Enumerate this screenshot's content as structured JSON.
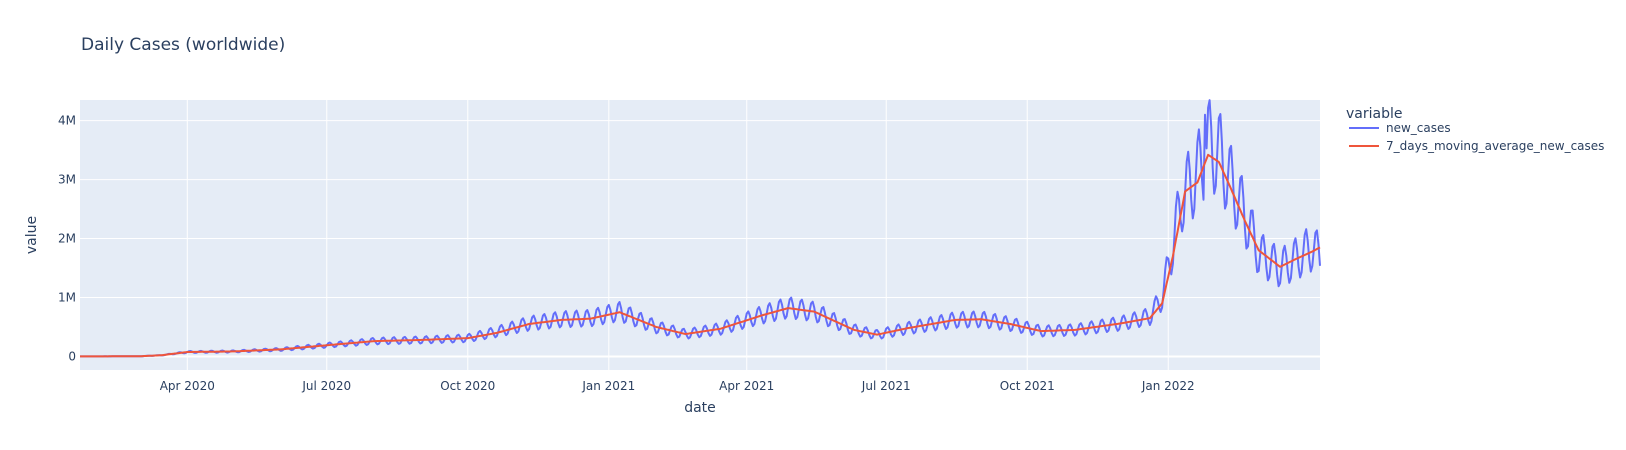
{
  "chart_data": {
    "type": "line",
    "title": "Daily Cases (worldwide)",
    "xlabel": "date",
    "ylabel": "value",
    "x_ticks": [
      {
        "date": "2020-04-01",
        "label": "Apr 2020"
      },
      {
        "date": "2020-07-01",
        "label": "Jul 2020"
      },
      {
        "date": "2020-10-01",
        "label": "Oct 2020"
      },
      {
        "date": "2021-01-01",
        "label": "Jan 2021"
      },
      {
        "date": "2021-04-01",
        "label": "Apr 2021"
      },
      {
        "date": "2021-07-01",
        "label": "Jul 2021"
      },
      {
        "date": "2021-10-01",
        "label": "Oct 2021"
      },
      {
        "date": "2022-01-01",
        "label": "Jan 2022"
      }
    ],
    "y_ticks": [
      {
        "value": 0,
        "label": "0"
      },
      {
        "value": 1000000,
        "label": "1M"
      },
      {
        "value": 2000000,
        "label": "2M"
      },
      {
        "value": 3000000,
        "label": "3M"
      },
      {
        "value": 4000000,
        "label": "4M"
      }
    ],
    "xlim": [
      "2020-01-22",
      "2022-04-10"
    ],
    "ylim": [
      -230000,
      4350000
    ],
    "grid": true,
    "legend": {
      "title": "variable",
      "placement": "right"
    },
    "series": [
      {
        "name": "new_cases",
        "color": "#636efa",
        "base": [
          [
            "2020-01-22",
            0
          ],
          [
            "2020-02-15",
            2000
          ],
          [
            "2020-03-01",
            3000
          ],
          [
            "2020-03-15",
            20000
          ],
          [
            "2020-04-01",
            75000
          ],
          [
            "2020-05-01",
            85000
          ],
          [
            "2020-06-01",
            120000
          ],
          [
            "2020-07-01",
            190000
          ],
          [
            "2020-08-01",
            260000
          ],
          [
            "2020-09-01",
            280000
          ],
          [
            "2020-10-01",
            310000
          ],
          [
            "2020-10-20",
            420000
          ],
          [
            "2020-11-10",
            560000
          ],
          [
            "2020-12-01",
            630000
          ],
          [
            "2020-12-20",
            650000
          ],
          [
            "2021-01-08",
            760000
          ],
          [
            "2021-02-01",
            500000
          ],
          [
            "2021-02-20",
            380000
          ],
          [
            "2021-03-15",
            470000
          ],
          [
            "2021-04-10",
            700000
          ],
          [
            "2021-04-28",
            830000
          ],
          [
            "2021-05-15",
            760000
          ],
          [
            "2021-06-10",
            450000
          ],
          [
            "2021-06-25",
            370000
          ],
          [
            "2021-07-15",
            480000
          ],
          [
            "2021-08-15",
            620000
          ],
          [
            "2021-09-01",
            630000
          ],
          [
            "2021-09-20",
            550000
          ],
          [
            "2021-10-10",
            430000
          ],
          [
            "2021-11-01",
            450000
          ],
          [
            "2021-12-01",
            560000
          ],
          [
            "2021-12-20",
            680000
          ],
          [
            "2021-12-28",
            1000000
          ],
          [
            "2022-01-04",
            1900000
          ],
          [
            "2022-01-10",
            2700000
          ],
          [
            "2022-01-20",
            3100000
          ],
          [
            "2022-01-27",
            3600000
          ],
          [
            "2022-02-03",
            3450000
          ],
          [
            "2022-02-10",
            3000000
          ],
          [
            "2022-02-20",
            2400000
          ],
          [
            "2022-03-01",
            1750000
          ],
          [
            "2022-03-15",
            1500000
          ],
          [
            "2022-03-25",
            1650000
          ],
          [
            "2022-04-05",
            1850000
          ],
          [
            "2022-04-10",
            1700000
          ]
        ],
        "weekly_amplitude": 0.22,
        "peak_points": [
          [
            "2022-01-25",
            4100000
          ]
        ]
      },
      {
        "name": "7_days_moving_average_new_cases",
        "color": "#ef553b",
        "points": [
          [
            "2020-01-22",
            0
          ],
          [
            "2020-02-15",
            2000
          ],
          [
            "2020-03-01",
            3000
          ],
          [
            "2020-03-15",
            20000
          ],
          [
            "2020-04-01",
            75000
          ],
          [
            "2020-05-01",
            85000
          ],
          [
            "2020-06-01",
            120000
          ],
          [
            "2020-07-01",
            190000
          ],
          [
            "2020-08-01",
            260000
          ],
          [
            "2020-09-01",
            280000
          ],
          [
            "2020-10-01",
            310000
          ],
          [
            "2020-10-20",
            400000
          ],
          [
            "2020-11-10",
            550000
          ],
          [
            "2020-12-01",
            620000
          ],
          [
            "2020-12-20",
            640000
          ],
          [
            "2021-01-08",
            750000
          ],
          [
            "2021-02-01",
            500000
          ],
          [
            "2021-02-20",
            380000
          ],
          [
            "2021-03-15",
            470000
          ],
          [
            "2021-04-10",
            690000
          ],
          [
            "2021-04-28",
            820000
          ],
          [
            "2021-05-15",
            760000
          ],
          [
            "2021-06-10",
            450000
          ],
          [
            "2021-06-25",
            370000
          ],
          [
            "2021-07-15",
            480000
          ],
          [
            "2021-08-15",
            620000
          ],
          [
            "2021-09-01",
            630000
          ],
          [
            "2021-09-20",
            550000
          ],
          [
            "2021-10-10",
            430000
          ],
          [
            "2021-11-01",
            450000
          ],
          [
            "2021-12-01",
            560000
          ],
          [
            "2021-12-20",
            650000
          ],
          [
            "2021-12-28",
            900000
          ],
          [
            "2022-01-04",
            1700000
          ],
          [
            "2022-01-12",
            2800000
          ],
          [
            "2022-01-20",
            2950000
          ],
          [
            "2022-01-27",
            3420000
          ],
          [
            "2022-02-03",
            3300000
          ],
          [
            "2022-02-10",
            2900000
          ],
          [
            "2022-02-20",
            2300000
          ],
          [
            "2022-03-01",
            1800000
          ],
          [
            "2022-03-15",
            1520000
          ],
          [
            "2022-03-25",
            1650000
          ],
          [
            "2022-04-05",
            1780000
          ],
          [
            "2022-04-10",
            1850000
          ]
        ]
      }
    ]
  }
}
